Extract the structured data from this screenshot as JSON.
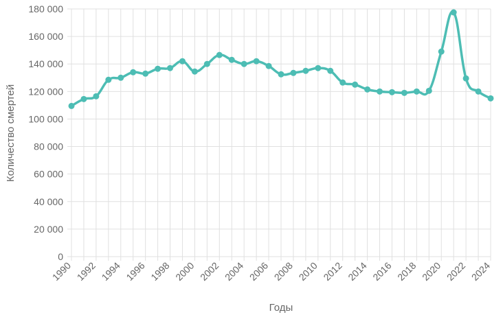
{
  "chart_data": {
    "type": "line",
    "xlabel": "Годы",
    "ylabel": "Количество смертей",
    "ylim": [
      0,
      180000
    ],
    "xlim": [
      1990,
      2024
    ],
    "grid": true,
    "x_tick_labels": [
      "1990",
      "1992",
      "1994",
      "1996",
      "1998",
      "2000",
      "2002",
      "2004",
      "2006",
      "2008",
      "2010",
      "2012",
      "2014",
      "2016",
      "2018",
      "2020",
      "2022",
      "2024"
    ],
    "y_tick_labels": [
      "0",
      "20 000",
      "40 000",
      "60 000",
      "80 000",
      "100 000",
      "120 000",
      "140 000",
      "160 000",
      "180 000"
    ],
    "series": [
      {
        "color": "#4dbdb4",
        "x": [
          1990,
          1991,
          1992,
          1993,
          1994,
          1995,
          1996,
          1997,
          1998,
          1999,
          2000,
          2001,
          2002,
          2003,
          2004,
          2005,
          2006,
          2007,
          2008,
          2009,
          2010,
          2011,
          2012,
          2013,
          2014,
          2015,
          2016,
          2017,
          2018,
          2019,
          2020,
          2021,
          2022,
          2023,
          2024
        ],
        "values": [
          109500,
          114500,
          116500,
          128500,
          130000,
          134000,
          133000,
          136500,
          137000,
          142000,
          134500,
          140000,
          146500,
          143000,
          140000,
          142000,
          138500,
          132500,
          133500,
          135000,
          137000,
          135000,
          126500,
          125000,
          121500,
          120000,
          119500,
          119000,
          120000,
          120500,
          149000,
          177500,
          129500,
          120000,
          115000
        ]
      }
    ]
  }
}
